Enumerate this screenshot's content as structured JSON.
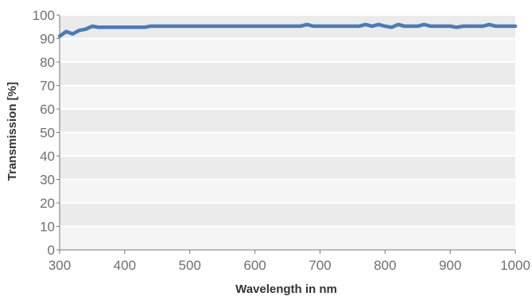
{
  "chart_data": {
    "type": "line",
    "xlabel": "Wavelength in nm",
    "ylabel": "Transmission [%]",
    "xlim": [
      300,
      1000
    ],
    "ylim": [
      0,
      100
    ],
    "x_ticks": [
      300,
      400,
      500,
      600,
      700,
      800,
      900,
      1000
    ],
    "y_ticks": [
      0,
      10,
      20,
      30,
      40,
      50,
      60,
      70,
      80,
      90,
      100
    ],
    "grid": "horizontal bands",
    "legend": "none",
    "colors": {
      "line": "#4a7ab8",
      "band_dark": "#ebebeb",
      "band_light": "#f5f5f5",
      "tick_label": "#6f6f6f",
      "axis_label": "#333333",
      "axis": "#777777"
    },
    "series": [
      {
        "x": [
          300,
          310,
          320,
          330,
          340,
          350,
          360,
          380,
          400,
          420,
          430,
          440,
          460,
          480,
          500,
          520,
          540,
          560,
          580,
          600,
          620,
          640,
          660,
          670,
          680,
          690,
          700,
          720,
          740,
          760,
          770,
          780,
          790,
          800,
          810,
          820,
          830,
          840,
          850,
          860,
          870,
          880,
          890,
          900,
          910,
          920,
          930,
          940,
          950,
          960,
          970,
          980,
          990,
          1000
        ],
        "y": [
          91,
          93,
          92,
          93.5,
          94,
          95.3,
          94.8,
          94.8,
          94.8,
          94.8,
          94.8,
          95.3,
          95.3,
          95.3,
          95.3,
          95.3,
          95.3,
          95.3,
          95.3,
          95.3,
          95.3,
          95.3,
          95.3,
          95.3,
          96,
          95.3,
          95.3,
          95.3,
          95.3,
          95.3,
          96,
          95.3,
          96,
          95.3,
          94.8,
          96,
          95.3,
          95.3,
          95.3,
          96,
          95.3,
          95.3,
          95.3,
          95.3,
          94.8,
          95.3,
          95.3,
          95.3,
          95.3,
          96,
          95.3,
          95.3,
          95.3,
          95.3
        ]
      }
    ]
  }
}
